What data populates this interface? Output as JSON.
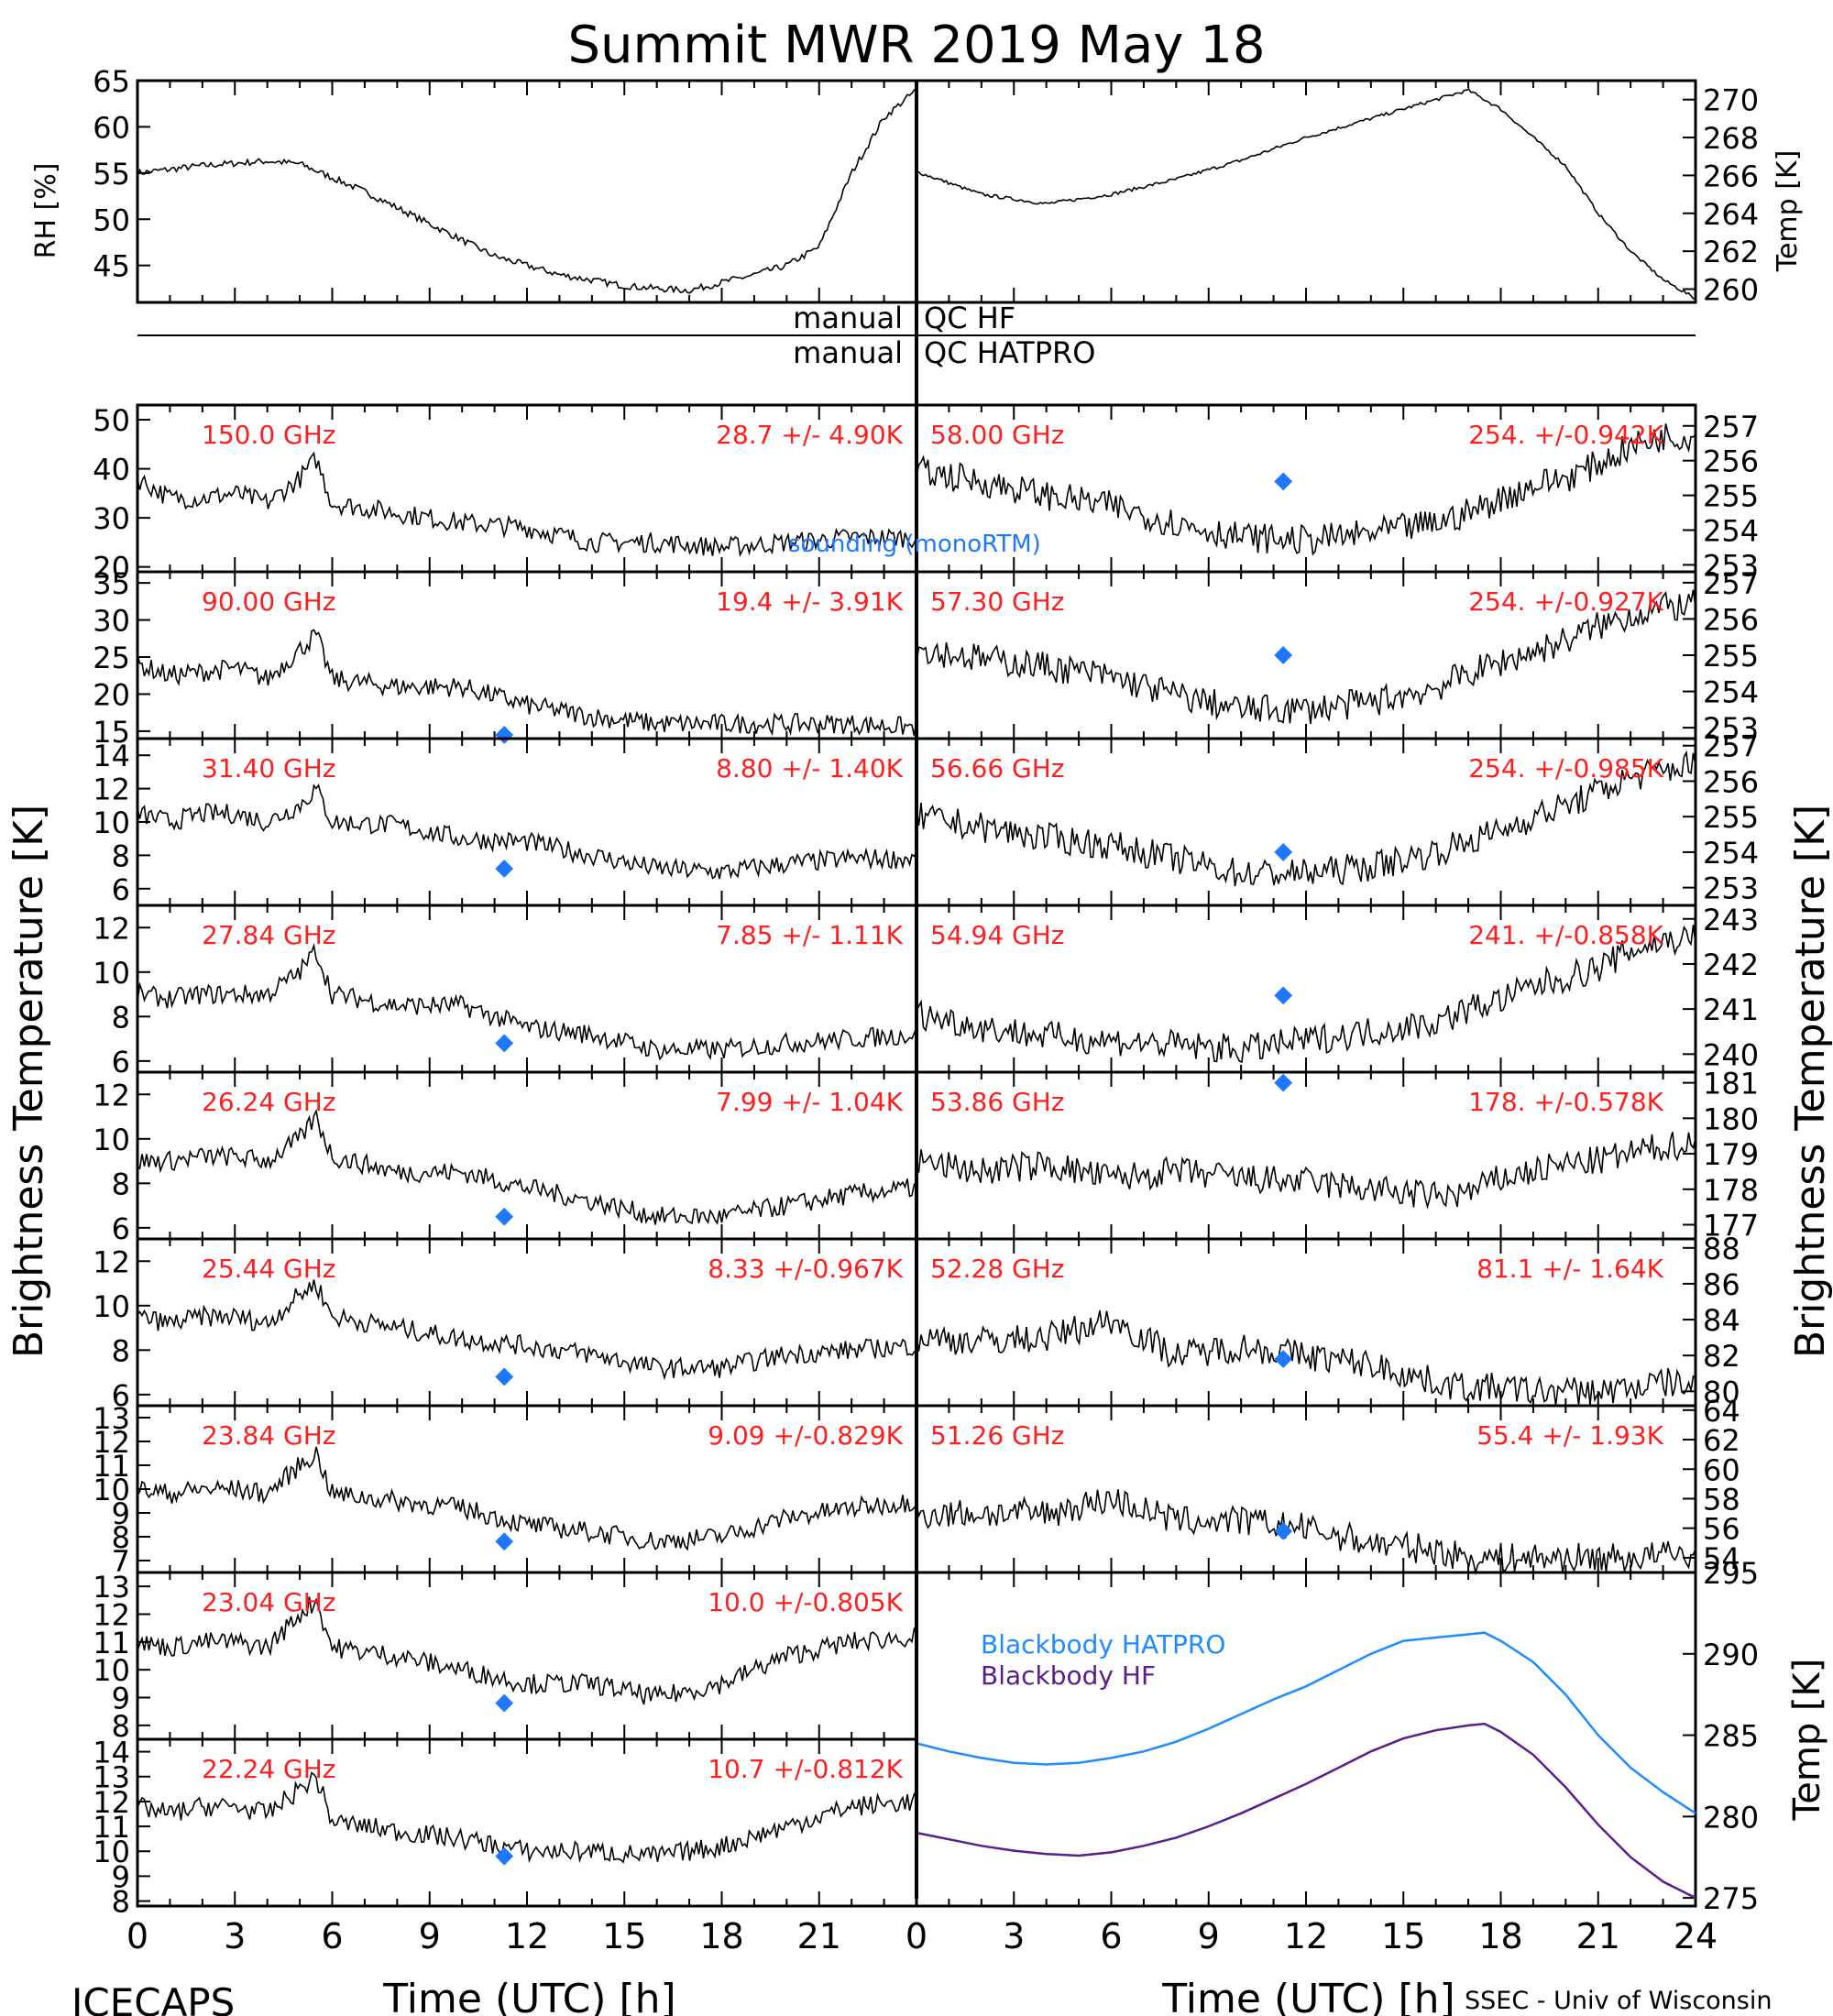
{
  "title": "Summit MWR 2019 May 18",
  "footer": {
    "left": "ICECAPS",
    "right": "SSEC - Univ of Wisconsin",
    "xlabel": "Time (UTC) [h]"
  },
  "colors": {
    "label_red": "#ff1e1e",
    "sounding_blue": "#1e78ff",
    "blackbody_hatpro": "#1e8cff",
    "blackbody_hf": "#5a1e8c",
    "trace": "#000000"
  },
  "side_labels": {
    "left": "Brightness Temperature [K]",
    "right": "Brightness Temperature [K]",
    "rh": "RH [%]",
    "temp_top": "Temp [K]",
    "temp_bb": "Temp [K]"
  },
  "qc": {
    "hf_left": "manual",
    "hf_right": "QC HF",
    "hatpro_left": "manual",
    "hatpro_right": "QC HATPRO"
  },
  "legend": {
    "sounding": "sounding (monoRTM)",
    "bb_hatpro": "Blackbody HATPRO",
    "bb_hf": "Blackbody HF"
  },
  "x_ticks": [
    "0",
    "3",
    "6",
    "9",
    "12",
    "15",
    "18",
    "21"
  ],
  "x_ticks_right": [
    "0",
    "3",
    "6",
    "9",
    "12",
    "15",
    "18",
    "21",
    "24"
  ],
  "chart_data": [
    {
      "type": "line",
      "panel": "rh",
      "ylabel": "RH [%]",
      "xlim": [
        0,
        24
      ],
      "ylim": [
        41,
        65
      ],
      "yticks": [
        "45",
        "50",
        "55",
        "60",
        "65"
      ],
      "x": [
        0,
        2,
        4,
        5,
        7,
        9,
        11,
        13,
        15,
        16,
        17,
        19,
        20,
        21,
        22,
        23,
        24
      ],
      "values": [
        55,
        55.8,
        56.3,
        56,
        53,
        49.5,
        46,
        44,
        42.8,
        42.5,
        42.3,
        44,
        45,
        47,
        55,
        61,
        64
      ]
    },
    {
      "type": "line",
      "panel": "temp",
      "ylabel": "Temp [K]",
      "xlim": [
        0,
        24
      ],
      "ylim": [
        259.3,
        271
      ],
      "yticks": [
        "260",
        "262",
        "264",
        "266",
        "268",
        "270"
      ],
      "x": [
        0,
        2,
        4,
        6,
        8,
        10,
        12,
        14,
        16,
        17,
        18,
        19,
        20,
        21,
        22,
        23,
        24
      ],
      "values": [
        266.2,
        265,
        264.5,
        265,
        265.8,
        266.8,
        268,
        269,
        270,
        270.5,
        269.5,
        268,
        266.5,
        264,
        262,
        260.5,
        259.5
      ]
    },
    {
      "type": "scatter",
      "panel": "left",
      "label": "150.0 GHz",
      "stats": "28.7 +/-  4.90K",
      "ylim": [
        19,
        53
      ],
      "yticks": [
        "20",
        "30",
        "40",
        "50"
      ],
      "x": [
        0,
        1,
        2,
        3,
        4,
        5,
        5.5,
        6,
        8,
        10,
        12,
        14,
        16,
        18,
        20,
        22,
        24
      ],
      "values": [
        38,
        34,
        34,
        35,
        33,
        38,
        42,
        33,
        31,
        29,
        28,
        25,
        25,
        24,
        25,
        26,
        26
      ],
      "sounding": null
    },
    {
      "type": "scatter",
      "panel": "left",
      "label": "90.00 GHz",
      "stats": "19.4 +/-  3.91K",
      "ylim": [
        14,
        36.5
      ],
      "yticks": [
        "15",
        "20",
        "25",
        "30",
        "35"
      ],
      "x": [
        0,
        1,
        2,
        3,
        4,
        5,
        5.5,
        6,
        8,
        10,
        12,
        14,
        16,
        18,
        20,
        22,
        24
      ],
      "values": [
        24,
        22.5,
        23,
        23.5,
        22,
        26,
        28,
        22,
        21,
        21,
        18.5,
        17,
        16,
        16,
        16,
        16,
        15.5
      ],
      "sounding": 14.5
    },
    {
      "type": "scatter",
      "panel": "left",
      "label": "31.40 GHz",
      "stats": "8.80 +/- 1.40K",
      "ylim": [
        5,
        15
      ],
      "yticks": [
        "6",
        "8",
        "10",
        "12",
        "14"
      ],
      "x": [
        0,
        1,
        2,
        3,
        4,
        5,
        5.5,
        6,
        8,
        10,
        12,
        14,
        16,
        18,
        20,
        22,
        24
      ],
      "values": [
        10.5,
        10,
        10.5,
        10.5,
        10,
        11,
        12,
        10,
        9.8,
        9,
        8.8,
        8,
        7.2,
        7,
        7.5,
        7.8,
        7.8
      ],
      "sounding": 7.2
    },
    {
      "type": "scatter",
      "panel": "left",
      "label": "27.84 GHz",
      "stats": "7.85 +/- 1.11K",
      "ylim": [
        5.5,
        13
      ],
      "yticks": [
        "6",
        "8",
        "10",
        "12"
      ],
      "x": [
        0,
        1,
        2,
        3,
        4,
        5,
        5.5,
        6,
        8,
        10,
        12,
        14,
        16,
        18,
        20,
        22,
        24
      ],
      "values": [
        9,
        8.8,
        9,
        9,
        9,
        10,
        11,
        9,
        8.5,
        8.5,
        7.5,
        7.2,
        6.5,
        6.5,
        6.8,
        7,
        7.2
      ],
      "sounding": 6.8
    },
    {
      "type": "scatter",
      "panel": "left",
      "label": "26.24 GHz",
      "stats": "7.99 +/- 1.04K",
      "ylim": [
        5.5,
        13
      ],
      "yticks": [
        "6",
        "8",
        "10",
        "12"
      ],
      "x": [
        0,
        1,
        2,
        3,
        4,
        5,
        5.5,
        6,
        8,
        10,
        12,
        14,
        16,
        18,
        20,
        22,
        24
      ],
      "values": [
        9,
        9,
        9.2,
        9.2,
        9,
        10,
        11,
        9.2,
        8.5,
        8.5,
        7.8,
        7.2,
        6.5,
        6.5,
        7,
        7.5,
        7.8
      ],
      "sounding": 6.5
    },
    {
      "type": "scatter",
      "panel": "left",
      "label": "25.44 GHz",
      "stats": "8.33 +/-0.967K",
      "ylim": [
        5.5,
        13
      ],
      "yticks": [
        "6",
        "8",
        "10",
        "12"
      ],
      "x": [
        0,
        1,
        2,
        3,
        4,
        5,
        5.5,
        6,
        8,
        10,
        12,
        14,
        16,
        18,
        20,
        22,
        24
      ],
      "values": [
        9.5,
        9.2,
        9.5,
        9.5,
        9.2,
        10.5,
        11,
        9.5,
        9,
        8.5,
        8.2,
        7.8,
        7.2,
        7.2,
        7.8,
        8,
        8.2
      ],
      "sounding": 6.8
    },
    {
      "type": "scatter",
      "panel": "left",
      "label": "23.84 GHz",
      "stats": "9.09 +/-0.829K",
      "ylim": [
        6.5,
        13.5
      ],
      "yticks": [
        "7",
        "8",
        "9",
        "10",
        "11",
        "12",
        "13"
      ],
      "x": [
        0,
        1,
        2,
        3,
        4,
        5,
        5.5,
        6,
        8,
        10,
        12,
        14,
        16,
        18,
        20,
        22,
        24
      ],
      "values": [
        10,
        9.8,
        10,
        10,
        9.8,
        11,
        11.5,
        9.8,
        9.5,
        9.2,
        8.5,
        8.2,
        7.8,
        8,
        8.8,
        9.2,
        9.5
      ],
      "sounding": 7.8
    },
    {
      "type": "scatter",
      "panel": "left",
      "label": "23.04 GHz",
      "stats": "10.0 +/-0.805K",
      "ylim": [
        7.5,
        13.5
      ],
      "yticks": [
        "8",
        "9",
        "10",
        "11",
        "12",
        "13"
      ],
      "x": [
        0,
        1,
        2,
        3,
        4,
        5,
        5.5,
        6,
        8,
        10,
        12,
        14,
        16,
        18,
        20,
        22,
        24
      ],
      "values": [
        11,
        10.8,
        11,
        11,
        10.8,
        12,
        12.5,
        10.8,
        10.5,
        10,
        9.5,
        9.5,
        9,
        9.5,
        10.5,
        11,
        11.2
      ],
      "sounding": 8.8
    },
    {
      "type": "scatter",
      "panel": "left",
      "label": "22.24 GHz",
      "stats": "10.7 +/-0.812K",
      "ylim": [
        7.8,
        14.5
      ],
      "yticks": [
        "8",
        "9",
        "10",
        "11",
        "12",
        "13",
        "14"
      ],
      "x": [
        0,
        1,
        2,
        3,
        4,
        5,
        5.5,
        6,
        8,
        10,
        12,
        14,
        16,
        18,
        20,
        22,
        24
      ],
      "values": [
        11.8,
        11.5,
        11.8,
        11.8,
        11.5,
        12.5,
        13,
        11.2,
        10.8,
        10.5,
        10,
        10,
        9.8,
        10.2,
        11,
        11.8,
        12
      ],
      "sounding": 9.8
    },
    {
      "type": "scatter",
      "panel": "right",
      "label": "58.00 GHz",
      "stats": "254. +/-0.942K",
      "ylim": [
        252.8,
        257.6
      ],
      "yticks": [
        "253",
        "254",
        "255",
        "256",
        "257"
      ],
      "x": [
        0,
        2,
        4,
        6,
        8,
        10,
        12,
        14,
        16,
        17,
        18,
        19,
        20,
        21,
        22,
        23,
        24
      ],
      "values": [
        255.7,
        255.4,
        255,
        254.7,
        254.2,
        253.8,
        253.7,
        253.9,
        254.2,
        254.5,
        254.9,
        255.3,
        255.5,
        255.9,
        256.4,
        256.7,
        256.7
      ],
      "sounding": 255.4
    },
    {
      "type": "scatter",
      "panel": "right",
      "label": "57.30 GHz",
      "stats": "254. +/-0.927K",
      "ylim": [
        252.7,
        257.3
      ],
      "yticks": [
        "253",
        "254",
        "255",
        "256",
        "257"
      ],
      "x": [
        0,
        2,
        4,
        6,
        8,
        10,
        12,
        14,
        16,
        17,
        18,
        19,
        20,
        21,
        22,
        23,
        24
      ],
      "values": [
        255.2,
        254.9,
        254.7,
        254.4,
        253.9,
        253.5,
        253.5,
        253.7,
        254.1,
        254.5,
        254.8,
        255.1,
        255.4,
        255.8,
        256.1,
        256.3,
        256.4
      ],
      "sounding": 255
    },
    {
      "type": "scatter",
      "panel": "right",
      "label": "56.66 GHz",
      "stats": "254. +/-0.985K",
      "ylim": [
        252.5,
        257.2
      ],
      "yticks": [
        "253",
        "254",
        "255",
        "256",
        "257"
      ],
      "x": [
        0,
        2,
        4,
        6,
        8,
        10,
        12,
        14,
        16,
        17,
        18,
        19,
        20,
        21,
        22,
        23,
        24
      ],
      "values": [
        255,
        254.7,
        254.4,
        254.2,
        253.8,
        253.4,
        253.4,
        253.6,
        254,
        254.3,
        254.6,
        255,
        255.3,
        255.7,
        256.1,
        256.3,
        256.5
      ],
      "sounding": 254
    },
    {
      "type": "scatter",
      "panel": "right",
      "label": "54.94 GHz",
      "stats": "241. +/-0.858K",
      "ylim": [
        239.6,
        243.3
      ],
      "yticks": [
        "240",
        "241",
        "242",
        "243"
      ],
      "x": [
        0,
        2,
        4,
        6,
        8,
        10,
        12,
        14,
        16,
        17,
        18,
        19,
        20,
        21,
        22,
        23,
        24
      ],
      "values": [
        240.9,
        240.6,
        240.4,
        240.3,
        240.2,
        240.1,
        240.3,
        240.5,
        240.7,
        241,
        241.2,
        241.5,
        241.7,
        241.9,
        242.3,
        242.5,
        242.6
      ],
      "sounding": 241.3
    },
    {
      "type": "scatter",
      "panel": "right",
      "label": "53.86 GHz",
      "stats": "178. +/-0.578K",
      "ylim": [
        176.6,
        181.3
      ],
      "yticks": [
        "177",
        "178",
        "179",
        "180",
        "181"
      ],
      "x": [
        0,
        2,
        4,
        6,
        8,
        10,
        12,
        14,
        16,
        17,
        18,
        19,
        20,
        21,
        22,
        23,
        24
      ],
      "values": [
        178.8,
        178.5,
        178.7,
        178.3,
        178.5,
        178.3,
        178.2,
        178,
        177.8,
        177.9,
        178.3,
        178.5,
        178.7,
        178.8,
        179,
        179.2,
        179.3
      ],
      "sounding": 181
    },
    {
      "type": "scatter",
      "panel": "right",
      "label": "52.28 GHz",
      "stats": "81.1 +/- 1.64K",
      "ylim": [
        79.2,
        88.5
      ],
      "yticks": [
        "80",
        "82",
        "84",
        "86",
        "88"
      ],
      "x": [
        0,
        2,
        4,
        6,
        8,
        10,
        12,
        14,
        16,
        17,
        18,
        19,
        20,
        21,
        22,
        23,
        24
      ],
      "values": [
        83,
        82.8,
        83,
        84,
        82,
        82.5,
        82,
        81.5,
        80.5,
        80.2,
        80.2,
        80,
        80,
        80,
        80.2,
        80.5,
        80.3
      ],
      "sounding": 81.8
    },
    {
      "type": "scatter",
      "panel": "right",
      "label": "51.26 GHz",
      "stats": "55.4 +/- 1.93K",
      "ylim": [
        53,
        64.3
      ],
      "yticks": [
        "54",
        "56",
        "58",
        "60",
        "62",
        "64"
      ],
      "x": [
        0,
        2,
        4,
        6,
        8,
        10,
        12,
        14,
        16,
        17,
        18,
        19,
        20,
        21,
        22,
        23,
        24
      ],
      "values": [
        57,
        57,
        57,
        58,
        56.5,
        56.5,
        56,
        55,
        54.5,
        54,
        54,
        54,
        54,
        54,
        54,
        54.2,
        54.2
      ],
      "sounding": 55.8
    },
    {
      "type": "line",
      "panel": "blackbody",
      "ylabel": "Temp [K]",
      "xlim": [
        0,
        24
      ],
      "ylim": [
        274.5,
        295
      ],
      "yticks": [
        "275",
        "280",
        "285",
        "290",
        "295"
      ],
      "series": [
        {
          "name": "Blackbody HATPRO",
          "x": [
            0,
            1,
            2,
            3,
            4,
            5,
            6,
            7,
            8,
            9,
            10,
            11,
            12,
            13,
            14,
            15,
            16,
            17,
            17.5,
            18,
            19,
            20,
            21,
            22,
            23,
            24
          ],
          "values": [
            284.5,
            284,
            283.6,
            283.3,
            283.2,
            283.3,
            283.6,
            284,
            284.6,
            285.4,
            286.3,
            287.2,
            288,
            289,
            290,
            290.8,
            291,
            291.2,
            291.3,
            290.8,
            289.5,
            287.5,
            285,
            283,
            281.5,
            280.2
          ]
        },
        {
          "name": "Blackbody HF",
          "x": [
            0,
            1,
            2,
            3,
            4,
            5,
            6,
            7,
            8,
            9,
            10,
            11,
            12,
            13,
            14,
            15,
            16,
            17,
            17.5,
            18,
            19,
            20,
            21,
            22,
            23,
            24
          ],
          "values": [
            279,
            278.6,
            278.2,
            277.9,
            277.7,
            277.6,
            277.8,
            278.2,
            278.7,
            279.4,
            280.2,
            281.1,
            282,
            283,
            284,
            284.8,
            285.3,
            285.6,
            285.7,
            285.2,
            283.8,
            281.8,
            279.5,
            277.5,
            276,
            275
          ]
        }
      ]
    }
  ]
}
